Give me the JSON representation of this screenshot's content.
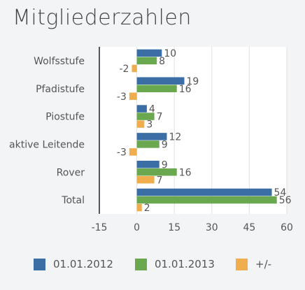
{
  "title": "Mitgliederzahlen",
  "chart_data": {
    "type": "bar",
    "orientation": "horizontal",
    "title": "Mitgliederzahlen",
    "categories": [
      "Wolfsstufe",
      "Pfadistufe",
      "Piostufe",
      "aktive Leitende",
      "Rover",
      "Total"
    ],
    "series": [
      {
        "name": "01.01.2012",
        "color": "#3a6ea5",
        "values": [
          10,
          19,
          4,
          12,
          9,
          54
        ]
      },
      {
        "name": "01.01.2013",
        "color": "#6aa84f",
        "values": [
          8,
          16,
          7,
          9,
          16,
          56
        ]
      },
      {
        "name": "+/-",
        "color": "#f0ad4e",
        "values": [
          -2,
          -3,
          3,
          -3,
          7,
          2
        ]
      }
    ],
    "xlim": [
      -15,
      60
    ],
    "xticks": [
      -15,
      0,
      15,
      30,
      45,
      60
    ],
    "grid": true,
    "legend_position": "bottom"
  }
}
